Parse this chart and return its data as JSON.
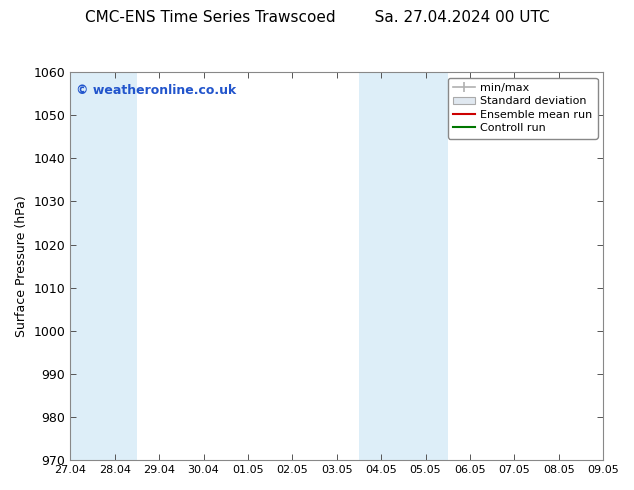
{
  "title_left": "CMC-ENS Time Series Trawscoed",
  "title_right": "Sa. 27.04.2024 00 UTC",
  "ylabel": "Surface Pressure (hPa)",
  "ylim": [
    970,
    1060
  ],
  "yticks": [
    970,
    980,
    990,
    1000,
    1010,
    1020,
    1030,
    1040,
    1050,
    1060
  ],
  "x_labels": [
    "27.04",
    "28.04",
    "29.04",
    "30.04",
    "01.05",
    "02.05",
    "03.05",
    "04.05",
    "05.05",
    "06.05",
    "07.05",
    "08.05",
    "09.05"
  ],
  "n_xticks": 13,
  "shaded_cols": [
    0,
    1,
    7,
    8
  ],
  "band_color": "#ddeef8",
  "bg_color": "#ffffff",
  "plot_bg_color": "#ffffff",
  "watermark": "© weatheronline.co.uk",
  "watermark_color": "#2255cc",
  "legend_items": [
    {
      "label": "min/max",
      "color": "#b0b0b0",
      "style": "minmax"
    },
    {
      "label": "Standard deviation",
      "color": "#c8c8c8",
      "style": "box"
    },
    {
      "label": "Ensemble mean run",
      "color": "#cc0000",
      "style": "line"
    },
    {
      "label": "Controll run",
      "color": "#007700",
      "style": "line"
    }
  ],
  "border_color": "#888888",
  "tick_color": "#000000",
  "grid_color": "#cccccc",
  "font_size_title": 11,
  "font_size_axis": 9,
  "font_size_legend": 8,
  "font_size_watermark": 9,
  "font_size_ytick": 9,
  "font_size_xtick": 8
}
